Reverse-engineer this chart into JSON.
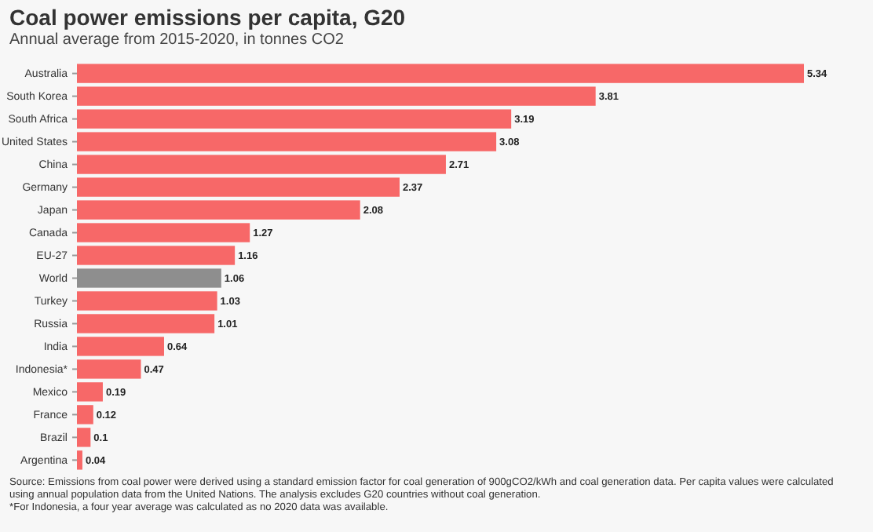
{
  "chart_data": {
    "type": "bar",
    "orientation": "horizontal",
    "title": "Coal power emissions per capita, G20",
    "subtitle": "Annual average from 2015-2020, in tonnes CO2",
    "categories": [
      "Australia",
      "South Korea",
      "South Africa",
      "United States",
      "China",
      "Germany",
      "Japan",
      "Canada",
      "EU-27",
      "World",
      "Turkey",
      "Russia",
      "India",
      "Indonesia*",
      "Mexico",
      "France",
      "Brazil",
      "Argentina"
    ],
    "values": [
      5.34,
      3.81,
      3.19,
      3.08,
      2.71,
      2.37,
      2.08,
      1.27,
      1.16,
      1.06,
      1.03,
      1.01,
      0.64,
      0.47,
      0.19,
      0.12,
      0.1,
      0.04
    ],
    "colors": [
      "#f76868",
      "#f76868",
      "#f76868",
      "#f76868",
      "#f76868",
      "#f76868",
      "#f76868",
      "#f76868",
      "#f76868",
      "#8e8e8e",
      "#f76868",
      "#f76868",
      "#f76868",
      "#f76868",
      "#f76868",
      "#f76868",
      "#f76868",
      "#f76868"
    ],
    "value_labels": [
      "5.34",
      "3.81",
      "3.19",
      "3.08",
      "2.71",
      "2.37",
      "2.08",
      "1.27",
      "1.16",
      "1.06",
      "1.03",
      "1.01",
      "0.64",
      "0.47",
      "0.19",
      "0.12",
      "0.1",
      "0.04"
    ],
    "annotations": [
      "Source: Emissions from coal power were derived using a standard emission factor for coal generation of 900gCO2/kWh and coal generation data. Per capita values were calculated using annual population data from the United Nations. The analysis excludes G20 countries without coal generation.",
      "*For Indonesia, a four year average was calculated as no 2020 data was available."
    ]
  }
}
